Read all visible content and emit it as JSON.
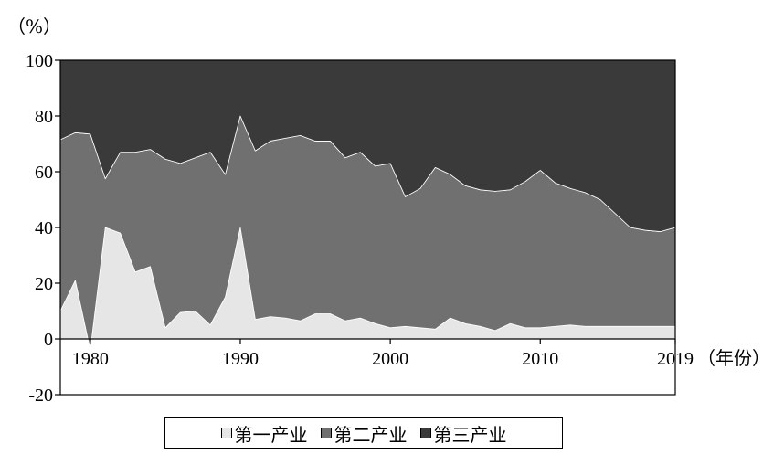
{
  "chart_data": {
    "type": "area",
    "stacked": true,
    "y_unit_label": "（%）",
    "x_unit_label": "（年份）",
    "ylim": [
      -20,
      100
    ],
    "yticks": [
      -20,
      0,
      20,
      40,
      60,
      80,
      100
    ],
    "xlim": [
      1978,
      2019
    ],
    "xticks": [
      1980,
      1990,
      2000,
      2010,
      2019
    ],
    "x": [
      1978,
      1979,
      1980,
      1981,
      1982,
      1983,
      1984,
      1985,
      1986,
      1987,
      1988,
      1989,
      1990,
      1991,
      1992,
      1993,
      1994,
      1995,
      1996,
      1997,
      1998,
      1999,
      2000,
      2001,
      2002,
      2003,
      2004,
      2005,
      2006,
      2007,
      2008,
      2009,
      2010,
      2011,
      2012,
      2013,
      2014,
      2015,
      2016,
      2017,
      2018,
      2019
    ],
    "series": [
      {
        "name": "第一产业",
        "color": "#e6e6e6",
        "values": [
          10,
          21,
          -4,
          40,
          38,
          24,
          26,
          4,
          9.5,
          10,
          5,
          15,
          40,
          7,
          8,
          7.5,
          6.5,
          9,
          9,
          6.5,
          7.5,
          5.5,
          4,
          4.5,
          4,
          3.5,
          7.5,
          5.5,
          4.5,
          3,
          5.5,
          4,
          4,
          4.5,
          5,
          4.5,
          4.5,
          4.5,
          4.5,
          4.5,
          4.5,
          4.5
        ]
      },
      {
        "name": "第二产业",
        "color": "#707070",
        "values": [
          61.5,
          53,
          77.5,
          17.5,
          29,
          43,
          42,
          60.5,
          53.5,
          55,
          62,
          44,
          40,
          60.5,
          63,
          64.5,
          66.5,
          62,
          62,
          58.5,
          59.5,
          56.5,
          59,
          46.5,
          50,
          58,
          51.5,
          49.5,
          49,
          50,
          48,
          52.5,
          56.5,
          51.5,
          49,
          48,
          45.5,
          40.5,
          35.5,
          34.5,
          34,
          35.5
        ]
      },
      {
        "name": "第三产业",
        "color": "#3a3a3a",
        "values": [
          28.5,
          26,
          26.5,
          42.5,
          33,
          33,
          32,
          35.5,
          37,
          35,
          33,
          41,
          20,
          32.5,
          29,
          28,
          27,
          29,
          29,
          35,
          33,
          38,
          37,
          49,
          46,
          38.5,
          41,
          45,
          46.5,
          47,
          46.5,
          43.5,
          39.5,
          44,
          46,
          47.5,
          50,
          55,
          60,
          61,
          61.5,
          60
        ]
      }
    ]
  }
}
